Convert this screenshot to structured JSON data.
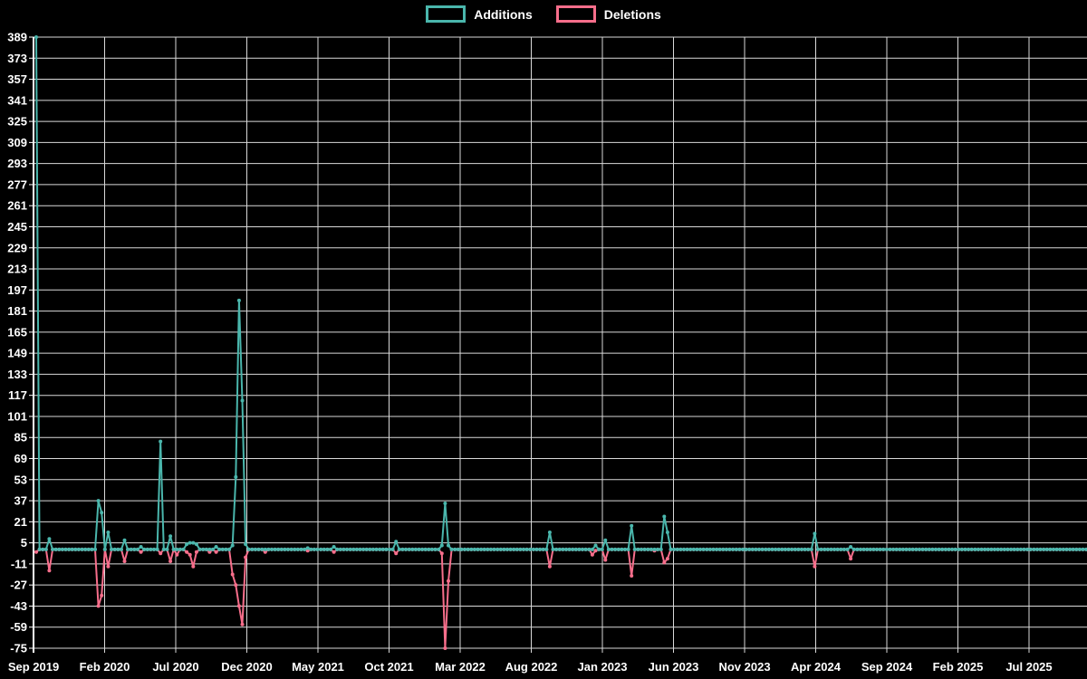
{
  "legend": {
    "items": [
      {
        "label": "Additions",
        "color": "#4ab6ac"
      },
      {
        "label": "Deletions",
        "color": "#f76e8b"
      }
    ]
  },
  "chart_data": {
    "type": "line",
    "x_unit": "week",
    "x_start_label": "Sep 2019",
    "x_tick_labels": [
      "Sep 2019",
      "Feb 2020",
      "Jul 2020",
      "Dec 2020",
      "May 2021",
      "Oct 2021",
      "Mar 2022",
      "Aug 2022",
      "Jan 2023",
      "Jun 2023",
      "Nov 2023",
      "Apr 2024",
      "Sep 2024",
      "Feb 2025",
      "Jul 2025"
    ],
    "y_ticks": [
      389,
      373,
      357,
      341,
      325,
      309,
      293,
      277,
      261,
      245,
      229,
      213,
      197,
      181,
      165,
      149,
      133,
      117,
      101,
      85,
      69,
      53,
      37,
      21,
      5,
      -11,
      -27,
      -43,
      -59,
      -75
    ],
    "ylim": [
      -75,
      389
    ],
    "grid": true,
    "legend_position": "top",
    "background_color": "#000000",
    "grid_color": "#ffffff",
    "total_weeks": 322,
    "baseline_value": 0,
    "series": [
      {
        "name": "Additions",
        "color": "#4ab6ac",
        "points_sparse": [
          [
            0,
            389
          ],
          [
            4,
            8
          ],
          [
            19,
            37
          ],
          [
            20,
            28
          ],
          [
            22,
            13
          ],
          [
            27,
            7
          ],
          [
            32,
            2
          ],
          [
            38,
            82
          ],
          [
            41,
            10
          ],
          [
            46,
            4
          ],
          [
            47,
            5
          ],
          [
            48,
            5
          ],
          [
            49,
            4
          ],
          [
            55,
            2
          ],
          [
            60,
            3
          ],
          [
            61,
            55
          ],
          [
            62,
            189
          ],
          [
            63,
            113
          ],
          [
            64,
            4
          ],
          [
            83,
            1
          ],
          [
            91,
            2
          ],
          [
            110,
            6
          ],
          [
            124,
            3
          ],
          [
            125,
            35
          ],
          [
            126,
            3
          ],
          [
            157,
            13
          ],
          [
            171,
            3
          ],
          [
            174,
            7
          ],
          [
            182,
            18
          ],
          [
            192,
            25
          ],
          [
            193,
            13
          ],
          [
            238,
            12
          ],
          [
            249,
            2
          ]
        ]
      },
      {
        "name": "Deletions",
        "color": "#f76e8b",
        "points_sparse": [
          [
            0,
            -2
          ],
          [
            4,
            -16
          ],
          [
            19,
            -43
          ],
          [
            20,
            -35
          ],
          [
            22,
            -13
          ],
          [
            27,
            -9
          ],
          [
            32,
            -2
          ],
          [
            38,
            -3
          ],
          [
            41,
            -9
          ],
          [
            43,
            -4
          ],
          [
            46,
            -2
          ],
          [
            47,
            -4
          ],
          [
            48,
            -13
          ],
          [
            49,
            -2
          ],
          [
            53,
            -2
          ],
          [
            55,
            -2
          ],
          [
            60,
            -19
          ],
          [
            61,
            -27
          ],
          [
            62,
            -43
          ],
          [
            63,
            -57
          ],
          [
            64,
            -6
          ],
          [
            70,
            -2
          ],
          [
            83,
            -1
          ],
          [
            91,
            -2
          ],
          [
            110,
            -3
          ],
          [
            124,
            -3
          ],
          [
            125,
            -75
          ],
          [
            126,
            -24
          ],
          [
            157,
            -13
          ],
          [
            170,
            -4
          ],
          [
            171,
            -1
          ],
          [
            174,
            -8
          ],
          [
            182,
            -20
          ],
          [
            189,
            -1
          ],
          [
            192,
            -10
          ],
          [
            193,
            -7
          ],
          [
            238,
            -13
          ],
          [
            249,
            -7
          ]
        ]
      }
    ]
  }
}
